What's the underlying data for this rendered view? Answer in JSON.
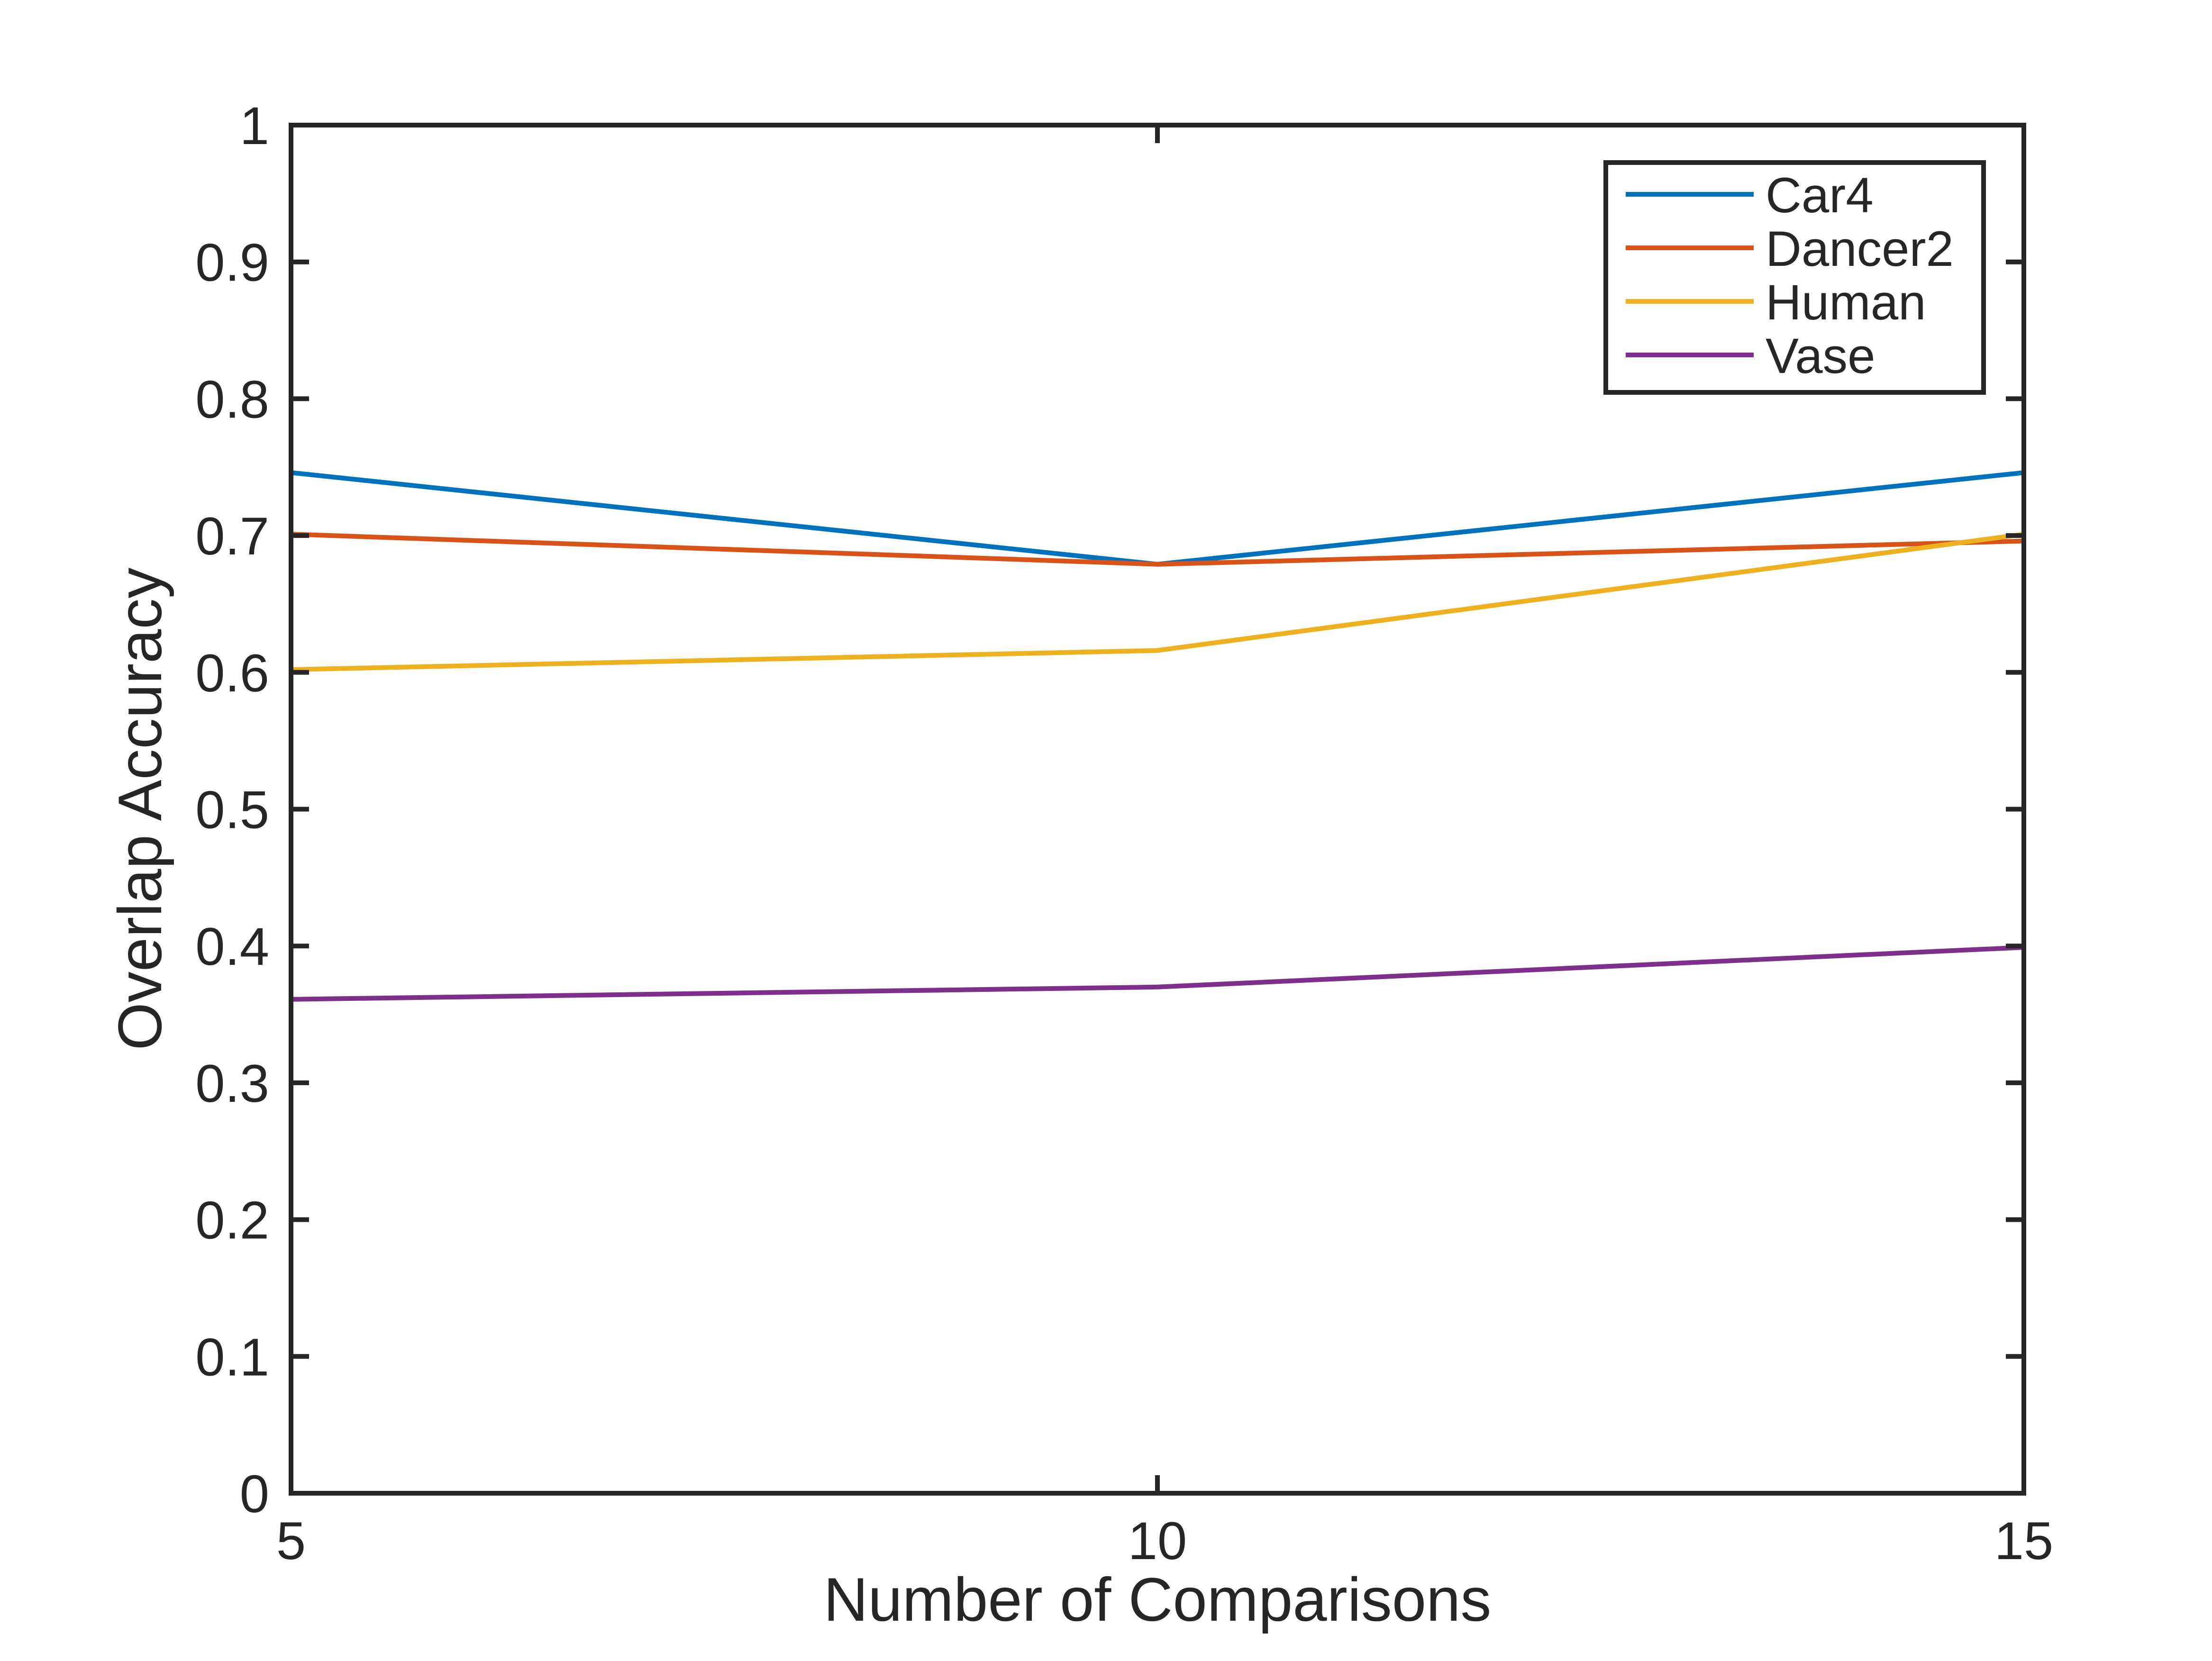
{
  "chart_data": {
    "type": "line",
    "title": "",
    "xlabel": "Number of Comparisons",
    "ylabel": "Overlap Accuracy",
    "x": [
      5,
      10,
      15
    ],
    "xlim": [
      5,
      15
    ],
    "ylim": [
      0,
      1
    ],
    "xticks": [
      5,
      10,
      15
    ],
    "xtick_labels": [
      "5",
      "10",
      "15"
    ],
    "yticks": [
      0,
      0.1,
      0.2,
      0.3,
      0.4,
      0.5,
      0.6,
      0.7,
      0.8,
      0.9,
      1
    ],
    "ytick_labels": [
      "0",
      "0.1",
      "0.2",
      "0.3",
      "0.4",
      "0.5",
      "0.6",
      "0.7",
      "0.8",
      "0.9",
      "1"
    ],
    "grid": false,
    "legend_position": "top-right",
    "series": [
      {
        "name": "Car4",
        "values": [
          0.746,
          0.679,
          0.746
        ],
        "color": "#0072BD"
      },
      {
        "name": "Dancer2",
        "values": [
          0.701,
          0.679,
          0.696
        ],
        "color": "#D95319"
      },
      {
        "name": "Human",
        "values": [
          0.602,
          0.616,
          0.701
        ],
        "color": "#EDB120"
      },
      {
        "name": "Vase",
        "values": [
          0.361,
          0.37,
          0.399
        ],
        "color": "#7E2F8E"
      }
    ]
  }
}
